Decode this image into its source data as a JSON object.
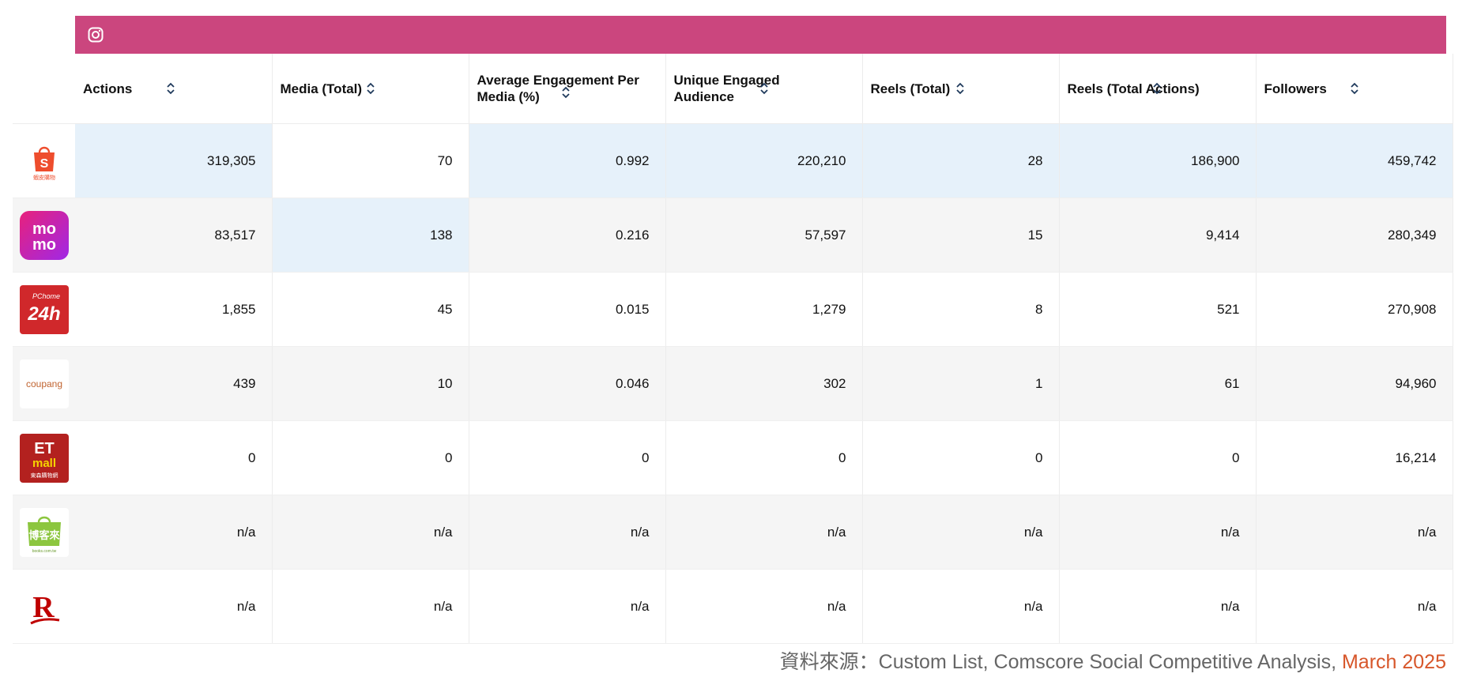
{
  "colors": {
    "banner": "#cb467e",
    "highlight": "#e6f1fa",
    "date_accent": "#d7562a"
  },
  "banner": {
    "icon": "instagram-icon"
  },
  "columns": [
    {
      "label": "Actions"
    },
    {
      "label": "Media (Total)"
    },
    {
      "label": "Average Engagement Per Media (%)"
    },
    {
      "label": "Unique Engaged Audience"
    },
    {
      "label": "Reels (Total)"
    },
    {
      "label": "Reels (Total Actions)"
    },
    {
      "label": "Followers"
    }
  ],
  "rows": [
    {
      "brand": "shopee-logo",
      "cells": [
        "319,305",
        "70",
        "0.992",
        "220,210",
        "28",
        "186,900",
        "459,742"
      ]
    },
    {
      "brand": "momo-logo",
      "cells": [
        "83,517",
        "138",
        "0.216",
        "57,597",
        "15",
        "9,414",
        "280,349"
      ]
    },
    {
      "brand": "pchome-24h-logo",
      "cells": [
        "1,855",
        "45",
        "0.015",
        "1,279",
        "8",
        "521",
        "270,908"
      ]
    },
    {
      "brand": "coupang-logo",
      "cells": [
        "439",
        "10",
        "0.046",
        "302",
        "1",
        "61",
        "94,960"
      ]
    },
    {
      "brand": "etmall-logo",
      "cells": [
        "0",
        "0",
        "0",
        "0",
        "0",
        "0",
        "16,214"
      ]
    },
    {
      "brand": "books-com-tw-logo",
      "cells": [
        "n/a",
        "n/a",
        "n/a",
        "n/a",
        "n/a",
        "n/a",
        "n/a"
      ]
    },
    {
      "brand": "rakuten-logo",
      "cells": [
        "n/a",
        "n/a",
        "n/a",
        "n/a",
        "n/a",
        "n/a",
        "n/a"
      ]
    }
  ],
  "logos": {
    "shopee_text": "S",
    "shopee_sub": "蝦皮購物",
    "momo_line1": "mo",
    "momo_line2": "mo",
    "pchome_top": "PChome",
    "pchome_main": "24h",
    "coupang": "coupang",
    "etmall_line1": "ET",
    "etmall_line2": "mall",
    "etmall_sub": "東森購物網",
    "books": "博客來",
    "books_sub": "books.com.tw",
    "rakuten": "R"
  },
  "source": {
    "prefix": "資料來源：Custom List, Comscore Social Competitive Analysis, ",
    "date": "March 2025"
  }
}
